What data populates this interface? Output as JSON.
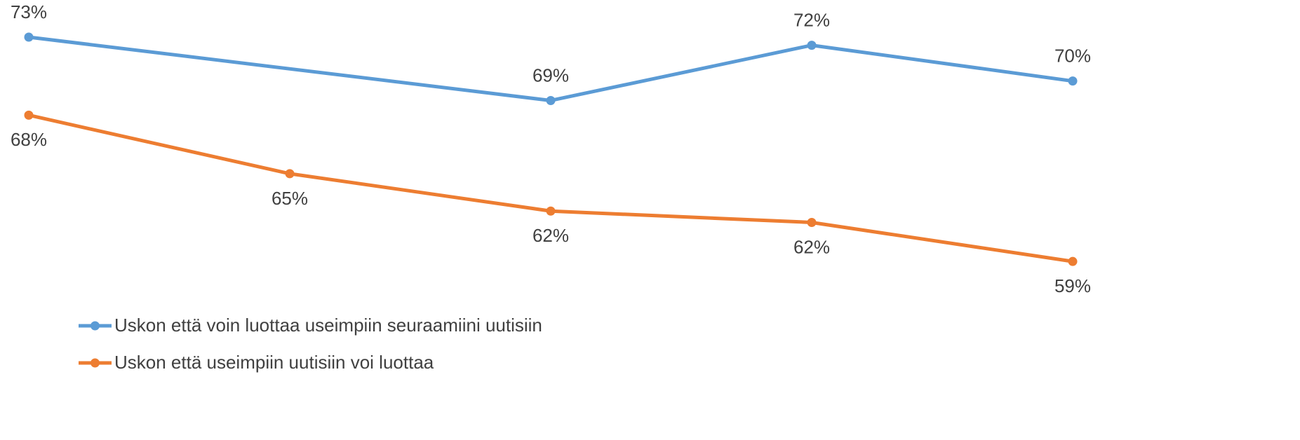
{
  "chart_data": {
    "type": "line",
    "categories": [
      null,
      null,
      null,
      null,
      null
    ],
    "series": [
      {
        "name": "Uskon että voin luottaa useimpiin seuraamiini uutisiin",
        "color": "#5b9bd5",
        "values": [
          73,
          null,
          69.1,
          72.5,
          70.3
        ],
        "value_labels": [
          "73%",
          null,
          "69%",
          "72%",
          "70%"
        ]
      },
      {
        "name": "Uskon että useimpiin uutisiin voi luottaa",
        "color": "#ed7d31",
        "values": [
          68.2,
          64.6,
          62.3,
          61.6,
          59.2
        ],
        "value_labels": [
          "68%",
          "65%",
          "62%",
          "62%",
          "59%"
        ]
      }
    ],
    "ylim": [
      57,
      75
    ],
    "legend": "bottom"
  }
}
